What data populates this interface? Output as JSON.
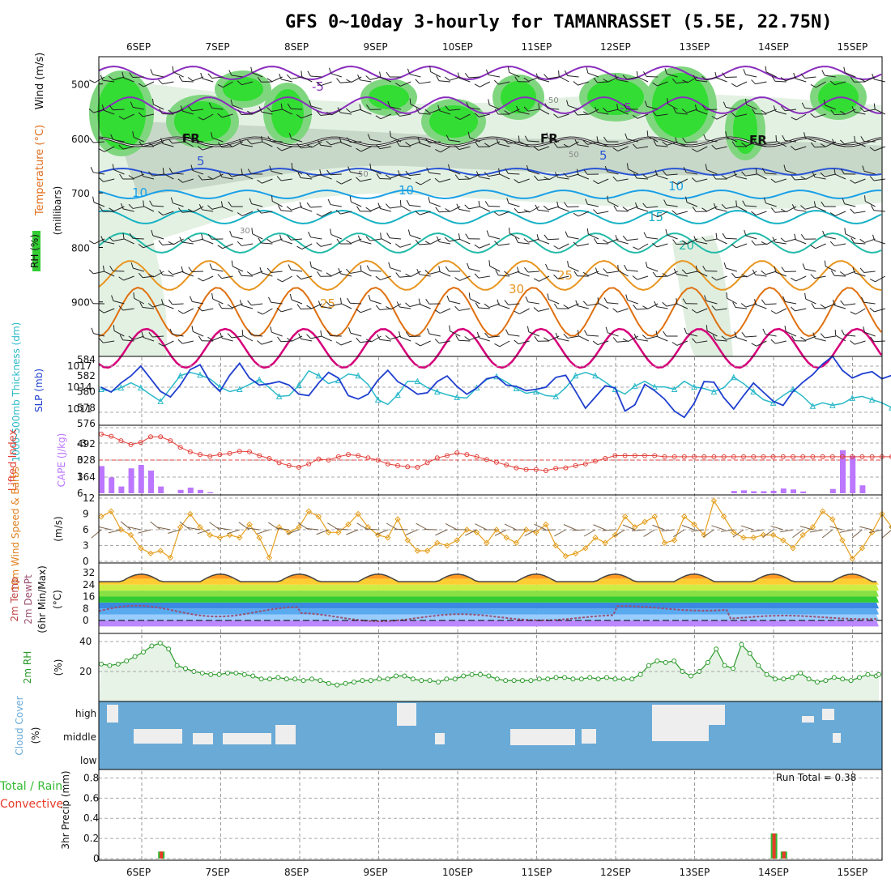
{
  "title": "GFS 0~10day 3-hourly for TAMANRASSET (5.5E, 22.75N)",
  "dates": [
    "6SEP",
    "7SEP",
    "8SEP",
    "9SEP",
    "10SEP",
    "11SEP",
    "12SEP",
    "13SEP",
    "14SEP",
    "15SEP"
  ],
  "colors": {
    "rh_green": "#33cc33",
    "temp_purple": "#8a2ebd",
    "temp_blue": "#2b55d6",
    "temp_cyan": "#1aa0e6",
    "temp_teal": "#22bba8",
    "temp_orange": "#e8951e",
    "temp_magenta": "#d6007a",
    "slp_blue": "#1f3fcf",
    "thick_cyan": "#2bb9c9",
    "cape_purple": "#bb77ff",
    "li_red": "#e2403a",
    "wind_orange": "#e6a020",
    "cloud_blue": "#6aaad6",
    "precip_green": "#33bb33",
    "precip_red": "#e83a2a"
  },
  "panels": {
    "upper": {
      "label_rh": "RH (%)",
      "label_temp": "Temperature (°C)",
      "label_wind": "Wind (m/s)",
      "label_mb": "(millibars)"
    },
    "slp": {
      "label_thick": "1000-500mb Thickness (dm)",
      "label_slp": "SLP (mb)"
    },
    "cape": {
      "label_li": "Lifted Index",
      "label_cape": "CAPE (J/kg)"
    },
    "wind10": {
      "label": "10m Wind Speed & Barbs",
      "unit": "(m/s)"
    },
    "temp2m": {
      "label_temp": "2m Temp",
      "label_dew": "2m DewPt",
      "label_minmax": "(6hr Min/Max)",
      "unit": "(°C)"
    },
    "rh2m": {
      "label": "2m RH",
      "unit": "(%)"
    },
    "cloud": {
      "label": "Cloud Cover",
      "unit": "(%)",
      "levels": [
        "high",
        "middle",
        "low"
      ]
    },
    "precip": {
      "label_total": "Total / Rain",
      "label_conv": "Convective",
      "label_units": "3hr Precip (mm)",
      "run_total": "Run Total = 0.38"
    }
  },
  "chart_data": [
    {
      "type": "heatmap",
      "name": "upper-air",
      "ylabel": "(millibars)",
      "ylim": [
        1000,
        450
      ],
      "yticks": [
        500,
        600,
        700,
        800,
        900
      ],
      "contour_labels": [
        "-5",
        "-5",
        "FR",
        "FR",
        "FR",
        "5",
        "5",
        "10",
        "10",
        "10",
        "15",
        "20",
        "25",
        "25",
        "30",
        "50",
        "50",
        "50",
        "30"
      ]
    },
    {
      "type": "line",
      "name": "slp-thickness",
      "left_ticks": [
        576,
        578,
        580,
        582,
        584
      ],
      "right_ticks": [
        1011,
        1014,
        1017
      ],
      "series": [
        {
          "name": "SLP (mb)",
          "values": [
            1014.0,
            1013.3,
            1014.6,
            1015.6,
            1017.0,
            1015.2,
            1013.4,
            1012.6,
            1014.3,
            1016.5,
            1017.2,
            1014.8,
            1013.4,
            1015.7,
            1017.4,
            1015.3,
            1014.3,
            1014.5,
            1014.8,
            1014.3,
            1013.0,
            1012.8,
            1014.6,
            1016.1,
            1015.3,
            1012.8,
            1012.3,
            1013.0,
            1015.0,
            1016.4,
            1014.8,
            1014.0,
            1013.0,
            1013.2,
            1014.8,
            1015.6,
            1014.1,
            1013.0,
            1013.9,
            1015.2,
            1015.5,
            1014.3,
            1014.1,
            1013.5,
            1013.7,
            1014.0,
            1015.4,
            1015.7,
            1013.4,
            1011.0,
            1012.6,
            1014.2,
            1013.9,
            1010.6,
            1011.5,
            1014.4,
            1013.5,
            1012.3,
            1010.6,
            1009.7,
            1011.7,
            1014.8,
            1014.7,
            1012.5,
            1010.9,
            1012.8,
            1014.6,
            1013.3,
            1012.0,
            1011.4,
            1013.4,
            1014.7,
            1015.8,
            1017.3,
            1018.4,
            1016.4,
            1015.3,
            1015.9,
            1016.2,
            1015.2,
            1015.7,
            1016.8,
            1017.5
          ]
        },
        {
          "name": "1000-500mb Thickness (dm)",
          "values": [
            580.3,
            580.0,
            580.5,
            581.1,
            580.5,
            579.6,
            578.8,
            580.4,
            582.0,
            582.4,
            582.1,
            581.6,
            580.6,
            580.0,
            580.3,
            580.9,
            581.5,
            580.5,
            579.4,
            579.5,
            580.8,
            582.6,
            582.0,
            581.0,
            581.4,
            582.2,
            582.0,
            580.9,
            579.0,
            578.4,
            579.6,
            581.3,
            581.3,
            580.5,
            580.0,
            579.6,
            579.3,
            579.2,
            580.5,
            581.5,
            581.9,
            581.2,
            580.4,
            579.8,
            580.0,
            579.5,
            579.4,
            580.5,
            582.0,
            582.4,
            582.0,
            581.2,
            580.3,
            579.7,
            580.7,
            581.3,
            580.6,
            580.6,
            580.3,
            581.3,
            580.6,
            580.4,
            580.0,
            580.5,
            581.8,
            581.0,
            580.0,
            579.0,
            578.6,
            579.5,
            580.3,
            579.4,
            578.2,
            578.6,
            578.3,
            578.5,
            579.2,
            579.4,
            579.0,
            578.6,
            578.0,
            577.0,
            576.6
          ]
        }
      ]
    },
    {
      "type": "bar",
      "name": "cape-lifted-index",
      "left_ticks": [
        -3,
        0,
        3,
        6
      ],
      "right_ticks": [
        164,
        328,
        492
      ],
      "series": [
        {
          "name": "CAPE (J/kg)",
          "values": [
            240,
            140,
            60,
            220,
            250,
            200,
            60,
            0,
            30,
            50,
            30,
            10,
            0,
            0,
            0,
            0,
            0,
            0,
            0,
            0,
            0,
            0,
            0,
            0,
            0,
            0,
            0,
            0,
            0,
            0,
            0,
            0,
            0,
            0,
            0,
            0,
            0,
            0,
            0,
            0,
            0,
            0,
            0,
            0,
            0,
            0,
            0,
            0,
            0,
            0,
            0,
            0,
            0,
            0,
            0,
            0,
            0,
            0,
            0,
            0,
            0,
            0,
            0,
            0,
            0,
            0,
            0,
            0,
            0,
            0,
            0,
            0,
            0,
            0,
            0,
            0,
            0,
            0,
            0,
            0,
            0,
            0,
            0
          ]
        },
        {
          "name": "Lifted Index",
          "values": [
            -4.7,
            -4.3,
            -3.5,
            -2.8,
            -3.2,
            -4.2,
            -4.2,
            -3.5,
            -2.3,
            -1.5,
            -1.0,
            -0.7,
            -1.0,
            -1.2,
            -1.6,
            -1.5,
            -0.8,
            -0.3,
            0.5,
            1.0,
            1.3,
            0.7,
            -0.2,
            0.0,
            -0.6,
            -1.0,
            -0.8,
            -0.4,
            0.0,
            0.7,
            1.0,
            1.2,
            1.3,
            0.5,
            -0.4,
            -0.8,
            -1.3,
            -1.0,
            -0.6,
            -0.1,
            0.4,
            0.9,
            1.4,
            1.7,
            1.7,
            1.9,
            1.5,
            1.4,
            1.0,
            0.7,
            0.2,
            -0.3,
            -0.8,
            -0.8,
            -0.8,
            -0.8,
            -0.8,
            -0.6,
            -0.6,
            -0.6,
            -0.6,
            -0.6,
            -0.6,
            -0.6,
            -0.6,
            -0.6,
            -0.6,
            -0.6,
            -0.6,
            -0.6,
            -0.6,
            -0.6,
            -0.6,
            -0.6,
            -0.6,
            -0.6,
            -0.6,
            -0.6,
            -0.6,
            -0.6,
            -0.6,
            -0.6,
            -0.6
          ]
        }
      ]
    },
    {
      "type": "line",
      "name": "10m-wind",
      "ylabel": "(m/s)",
      "ylim": [
        0,
        12
      ],
      "yticks": [
        0,
        3,
        6,
        9,
        12
      ],
      "values": [
        8.5,
        9.5,
        6.0,
        5.0,
        2.5,
        1.5,
        2.0,
        0.7,
        6.5,
        9.0,
        6.5,
        5.0,
        4.5,
        5.0,
        4.5,
        7.0,
        4.5,
        0.7,
        6.5,
        5.5,
        6.5,
        9.5,
        8.5,
        5.5,
        5.5,
        7.0,
        9.0,
        6.5,
        5.0,
        4.5,
        8.0,
        4.0,
        2.0,
        2.0,
        3.5,
        3.0,
        4.0,
        6.0,
        5.5,
        3.5,
        6.0,
        4.5,
        3.5,
        6.0,
        5.5,
        7.0,
        3.0,
        1.0,
        1.5,
        2.5,
        4.5,
        3.5,
        5.0,
        8.5,
        6.5,
        7.5,
        8.5,
        3.5,
        4.0,
        8.5,
        7.0,
        5.0,
        11.5,
        8.5,
        5.5,
        4.5,
        4.5,
        5.0,
        5.0,
        4.0,
        2.5,
        5.0,
        6.5,
        9.5,
        8.0,
        4.0,
        0.5,
        2.5,
        5.5,
        9.0,
        6.5,
        6.5,
        5.5,
        9.5,
        10.0,
        7.5,
        7.0
      ]
    },
    {
      "type": "area",
      "name": "2m-temp-dewpoint",
      "ylabel": "(°C)",
      "yticks": [
        0,
        8,
        16,
        24,
        32
      ],
      "series": [
        {
          "name": "2m Temp",
          "values": []
        },
        {
          "name": "2m DewPt",
          "values": []
        }
      ]
    },
    {
      "type": "area",
      "name": "2m-rh",
      "ylabel": "(%)",
      "yticks": [
        20,
        40
      ],
      "values": [
        25,
        24,
        25,
        27,
        30,
        33,
        37,
        39,
        35,
        24,
        22,
        20,
        19,
        18,
        18,
        19,
        19,
        18,
        17,
        15,
        15,
        16,
        15,
        15,
        14,
        15,
        14,
        12,
        11,
        12,
        13,
        14,
        14,
        15,
        15,
        17,
        17,
        15,
        14,
        14,
        13,
        15,
        15,
        17,
        18,
        18,
        17,
        15,
        14,
        14,
        14,
        14,
        15,
        15,
        16,
        16,
        15,
        15,
        16,
        15,
        16,
        15,
        15,
        15,
        18,
        24,
        27,
        26,
        27,
        20,
        17,
        20,
        26,
        35,
        24,
        22,
        38,
        32,
        24,
        18,
        15,
        15,
        16,
        19,
        15,
        13,
        14,
        16,
        15,
        14,
        16,
        18,
        17,
        18
      ]
    },
    {
      "type": "bar",
      "name": "cloud-cover",
      "levels": [
        "high",
        "middle",
        "low"
      ]
    },
    {
      "type": "bar",
      "name": "3hr-precip",
      "ylabel": "3hr Precip (mm)",
      "ylim": [
        0,
        0.9
      ],
      "yticks": [
        0,
        0.2,
        0.4,
        0.6,
        0.8
      ],
      "series": [
        {
          "name": "Total / Rain",
          "values": [
            0,
            0,
            0,
            0,
            0,
            0,
            0.07,
            0,
            0,
            0,
            0,
            0,
            0,
            0,
            0,
            0,
            0,
            0,
            0,
            0,
            0,
            0,
            0,
            0,
            0,
            0,
            0,
            0,
            0,
            0,
            0,
            0,
            0,
            0,
            0,
            0,
            0,
            0,
            0,
            0,
            0,
            0,
            0,
            0,
            0,
            0,
            0,
            0,
            0,
            0,
            0,
            0,
            0,
            0,
            0,
            0,
            0,
            0,
            0,
            0,
            0,
            0,
            0,
            0,
            0,
            0,
            0,
            0,
            0.25,
            0.07,
            0,
            0,
            0,
            0,
            0,
            0,
            0,
            0,
            0,
            0,
            0,
            0,
            0,
            0
          ]
        },
        {
          "name": "Convective",
          "values": [
            0,
            0,
            0,
            0,
            0,
            0,
            0.07,
            0,
            0,
            0,
            0,
            0,
            0,
            0,
            0,
            0,
            0,
            0,
            0,
            0,
            0,
            0,
            0,
            0,
            0,
            0,
            0,
            0,
            0,
            0,
            0,
            0,
            0,
            0,
            0,
            0,
            0,
            0,
            0,
            0,
            0,
            0,
            0,
            0,
            0,
            0,
            0,
            0,
            0,
            0,
            0,
            0,
            0,
            0,
            0,
            0,
            0,
            0,
            0,
            0,
            0,
            0,
            0,
            0,
            0,
            0,
            0,
            0,
            0.25,
            0.07,
            0,
            0,
            0,
            0,
            0,
            0,
            0,
            0,
            0,
            0,
            0,
            0,
            0,
            0
          ]
        }
      ]
    }
  ]
}
